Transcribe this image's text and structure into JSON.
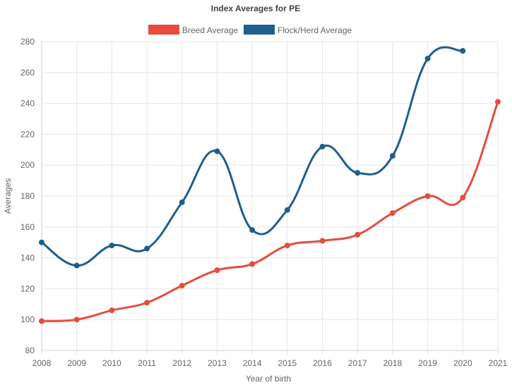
{
  "chart_data": {
    "type": "line",
    "title": "Index Averages for PE",
    "xlabel": "Year of birth",
    "ylabel": "Averages",
    "x": [
      "2008",
      "2009",
      "2010",
      "2011",
      "2012",
      "2013",
      "2014",
      "2015",
      "2016",
      "2017",
      "2018",
      "2019",
      "2020",
      "2021"
    ],
    "ylim": [
      80,
      280
    ],
    "yticks": [
      80,
      100,
      120,
      140,
      160,
      180,
      200,
      220,
      240,
      260,
      280
    ],
    "grid": true,
    "legend_position": "top",
    "series": [
      {
        "name": "Breed Average",
        "color": "#e74c3c",
        "values": [
          99,
          100,
          106,
          111,
          122,
          132,
          136,
          148,
          151,
          155,
          169,
          180,
          179,
          241
        ]
      },
      {
        "name": "Flock/Herd Average",
        "color": "#1f5e8c",
        "values": [
          150,
          135,
          148,
          146,
          176,
          209,
          158,
          171,
          212,
          195,
          206,
          269,
          274,
          null
        ]
      }
    ]
  }
}
